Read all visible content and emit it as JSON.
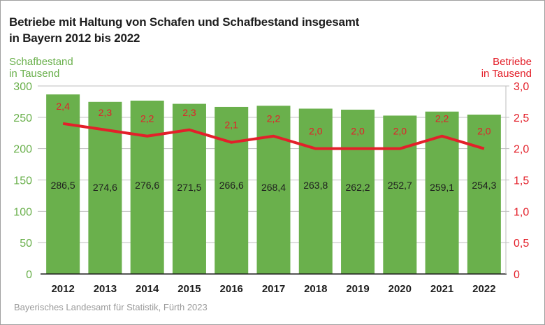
{
  "chart_data": {
    "type": "bar",
    "title": "Betriebe mit Haltung von Schafen und Schafbestand insgesamt in Bayern 2012 bis 2022",
    "title_lines": [
      "Betriebe mit Haltung von Schafen und Schafbestand insgesamt",
      "in Bayern 2012 bis 2022"
    ],
    "categories": [
      "2012",
      "2013",
      "2014",
      "2015",
      "2016",
      "2017",
      "2018",
      "2019",
      "2020",
      "2021",
      "2022"
    ],
    "series": [
      {
        "name": "Schafbestand",
        "type": "bar",
        "axis": "left",
        "color": "#6ab04c",
        "values": [
          286.5,
          274.6,
          276.6,
          271.5,
          266.6,
          268.4,
          263.8,
          262.2,
          252.7,
          259.1,
          254.3
        ],
        "labels": [
          "286,5",
          "274,6",
          "276,6",
          "271,5",
          "266,6",
          "268,4",
          "263,8",
          "262,2",
          "252,7",
          "259,1",
          "254,3"
        ]
      },
      {
        "name": "Betriebe",
        "type": "line",
        "axis": "right",
        "color": "#e3202a",
        "values": [
          2.4,
          2.3,
          2.2,
          2.3,
          2.1,
          2.2,
          2.0,
          2.0,
          2.0,
          2.2,
          2.0
        ],
        "labels": [
          "2,4",
          "2,3",
          "2,2",
          "2,3",
          "2,1",
          "2,2",
          "2,0",
          "2,0",
          "2,0",
          "2,2",
          "2,0"
        ]
      }
    ],
    "ylabel_left": [
      "Schafbestand",
      "in Tausend"
    ],
    "ylabel_right": [
      "Betriebe",
      "in Tausend"
    ],
    "ylim_left": [
      0,
      300
    ],
    "ylim_right": [
      0,
      3
    ],
    "yticks_left": [
      "0",
      "50",
      "100",
      "150",
      "200",
      "250",
      "300"
    ],
    "yticks_right": [
      "0",
      "0,5",
      "1,0",
      "1,5",
      "2,0",
      "2,5",
      "3,0"
    ],
    "grid": true,
    "legend": "none"
  },
  "source": "Bayerisches Landesamt für Statistik, Fürth 2023"
}
